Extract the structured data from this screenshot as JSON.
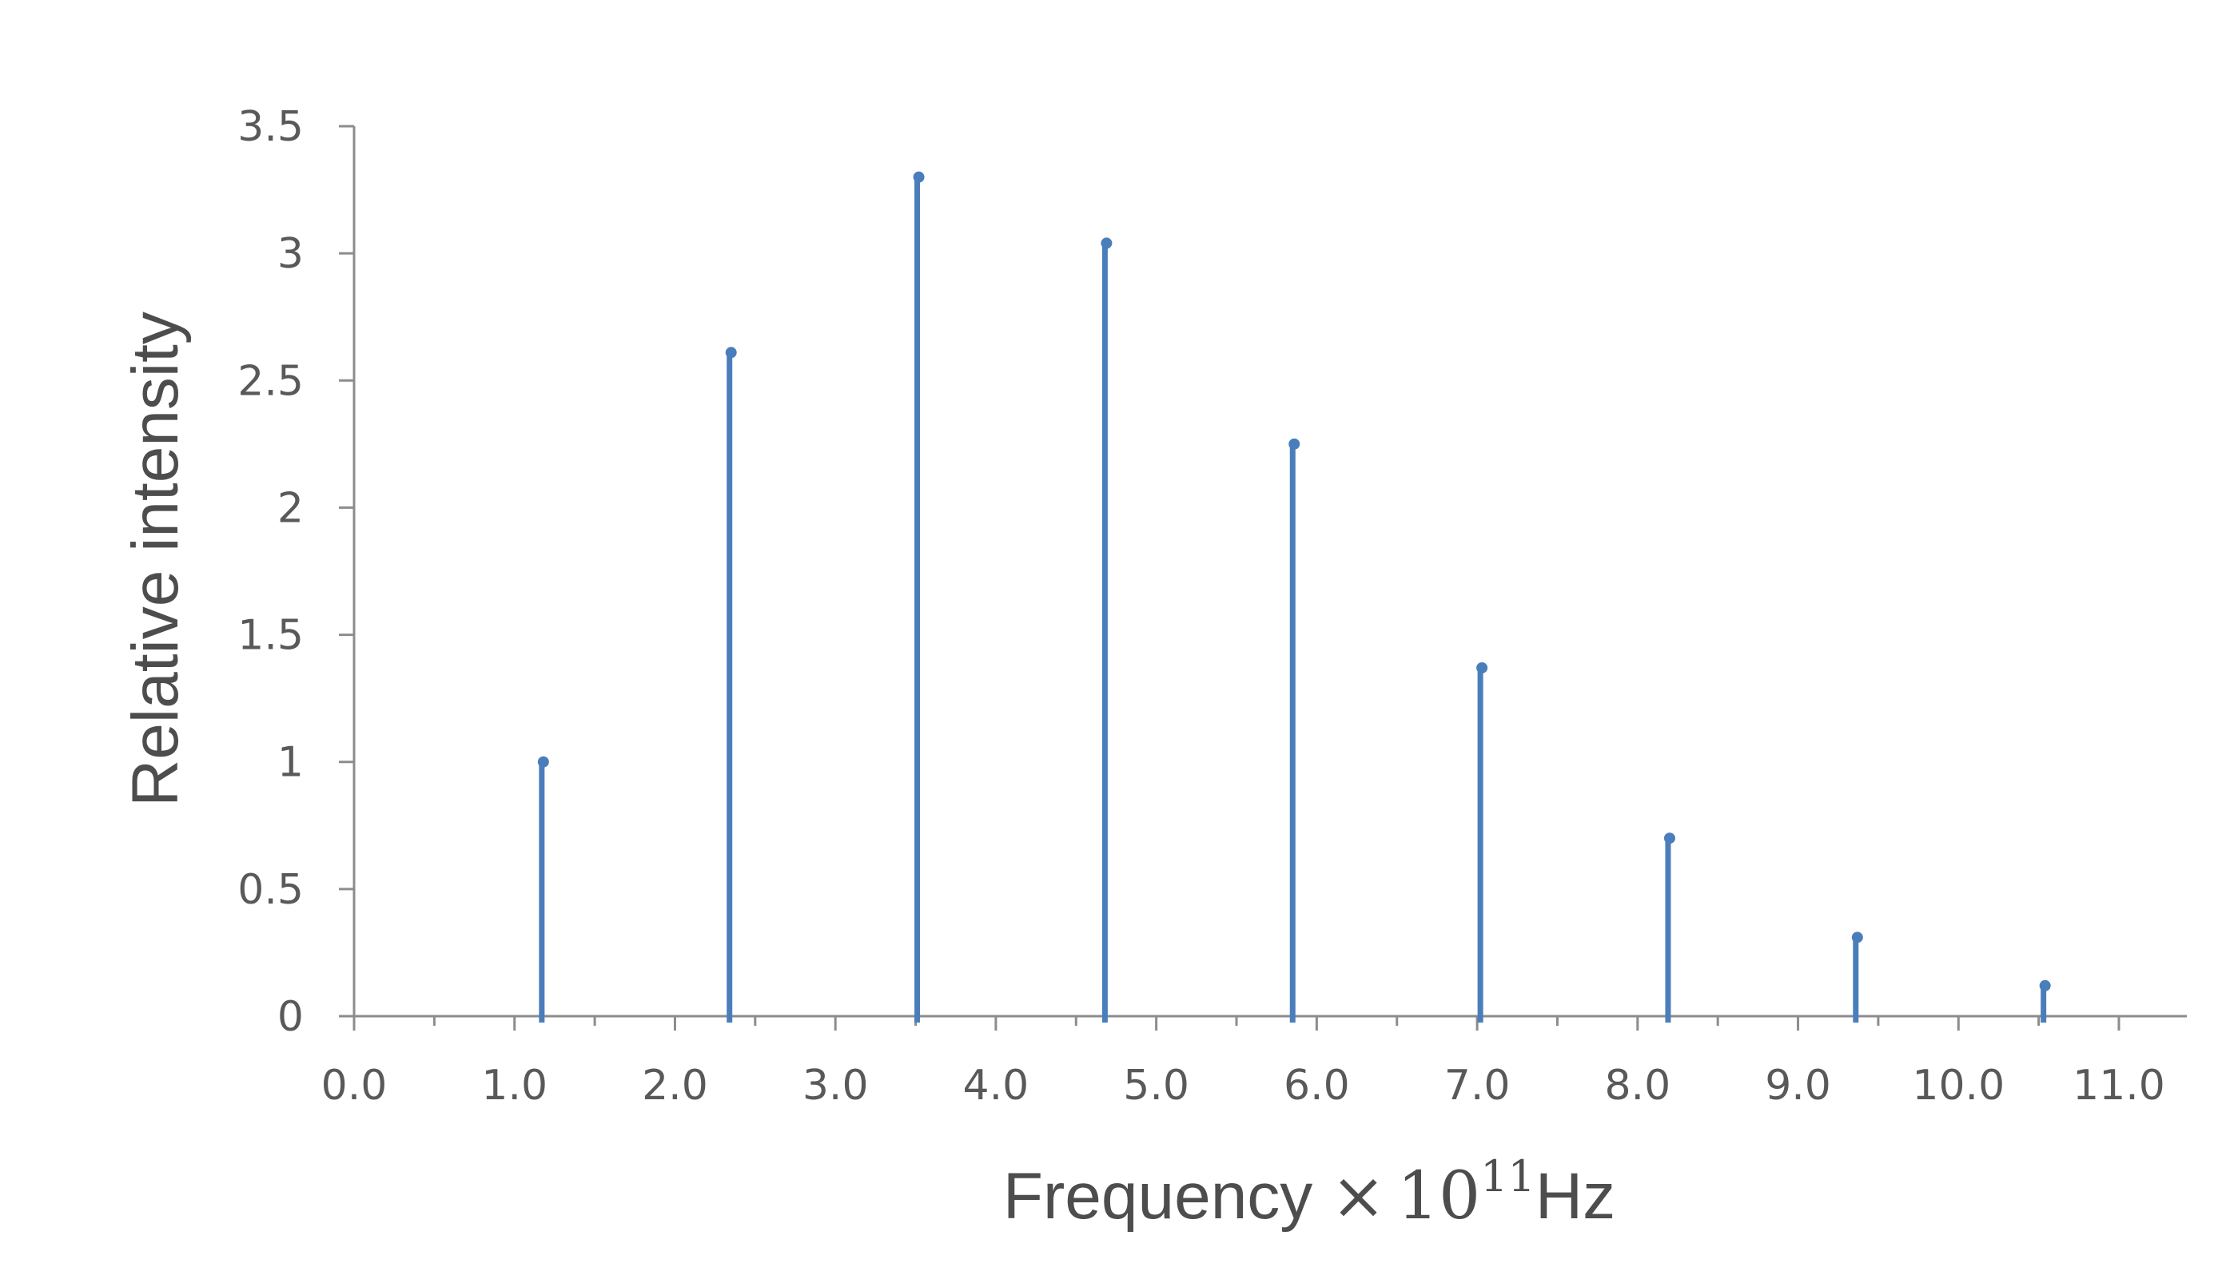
{
  "chart_data": {
    "type": "stem",
    "series_color": "#4a7ebb",
    "axis_color": "#8c8c8c",
    "x": [
      1.17,
      2.34,
      3.51,
      4.68,
      5.85,
      7.02,
      8.19,
      9.36,
      10.53
    ],
    "y": [
      1.0,
      2.61,
      3.3,
      3.04,
      2.25,
      1.37,
      0.7,
      0.31,
      0.12
    ],
    "xlim": [
      0,
      11
    ],
    "ylim": [
      0,
      3.5
    ],
    "x_ticks": [
      "0.0",
      "1.0",
      "2.0",
      "3.0",
      "4.0",
      "5.0",
      "6.0",
      "7.0",
      "8.0",
      "9.0",
      "10.0",
      "11.0"
    ],
    "y_ticks": [
      "0",
      "0.5",
      "1",
      "1.5",
      "2",
      "2.5",
      "3",
      "3.5"
    ],
    "xlabel": {
      "prefix": "Frequency ",
      "times": "×",
      "base": "10",
      "exponent": "11",
      "unit": "Hz"
    },
    "ylabel": "Relative intensity",
    "grid": false,
    "legend": "none"
  }
}
